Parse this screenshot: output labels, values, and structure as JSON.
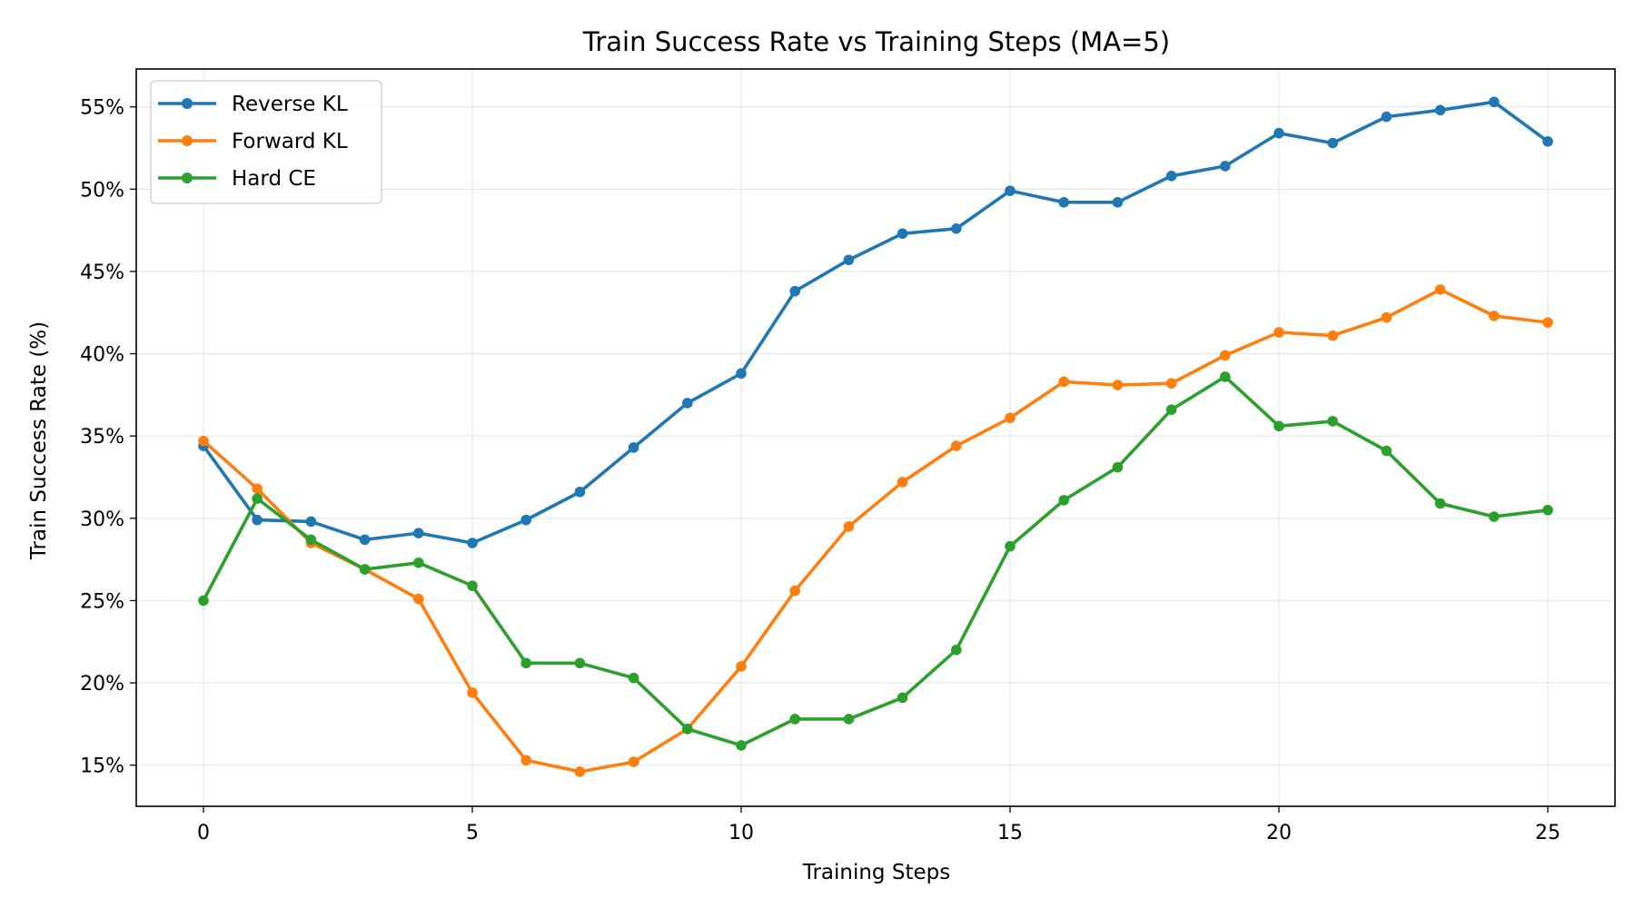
{
  "chart_data": {
    "type": "line",
    "title": "Train Success Rate vs Training Steps (MA=5)",
    "xlabel": "Training Steps",
    "ylabel": "Train Success Rate (%)",
    "xlim": [
      -1.25,
      26.25
    ],
    "ylim": [
      12.5,
      57.3
    ],
    "xticks": [
      0,
      5,
      10,
      15,
      20,
      25
    ],
    "xtick_labels": [
      "0",
      "5",
      "10",
      "15",
      "20",
      "25"
    ],
    "yticks": [
      15,
      20,
      25,
      30,
      35,
      40,
      45,
      50,
      55
    ],
    "ytick_labels": [
      "15%",
      "20%",
      "25%",
      "30%",
      "35%",
      "40%",
      "45%",
      "50%",
      "55%"
    ],
    "grid": true,
    "legend_position": "top-left",
    "x": [
      0,
      1,
      2,
      3,
      4,
      5,
      6,
      7,
      8,
      9,
      10,
      11,
      12,
      13,
      14,
      15,
      16,
      17,
      18,
      19,
      20,
      21,
      22,
      23,
      24,
      25
    ],
    "series": [
      {
        "name": "Reverse KL",
        "color": "#1f77b4",
        "values": [
          34.4,
          29.9,
          29.8,
          28.7,
          29.1,
          28.5,
          29.9,
          31.6,
          34.3,
          37.0,
          38.8,
          43.8,
          45.7,
          47.3,
          47.6,
          49.9,
          49.2,
          49.2,
          50.8,
          51.4,
          53.4,
          52.8,
          54.4,
          54.8,
          55.3,
          52.9
        ]
      },
      {
        "name": "Forward KL",
        "color": "#ff7f0e",
        "values": [
          34.7,
          31.8,
          28.5,
          26.9,
          25.1,
          19.4,
          15.3,
          14.6,
          15.2,
          17.2,
          21.0,
          25.6,
          29.5,
          32.2,
          34.4,
          36.1,
          38.3,
          38.1,
          38.2,
          39.9,
          41.3,
          41.1,
          42.2,
          43.9,
          42.3,
          41.9
        ]
      },
      {
        "name": "Hard CE",
        "color": "#2ca02c",
        "values": [
          25.0,
          31.2,
          28.7,
          26.9,
          27.3,
          25.9,
          21.2,
          21.2,
          20.3,
          17.2,
          16.2,
          17.8,
          17.8,
          19.1,
          22.0,
          28.3,
          31.1,
          33.1,
          36.6,
          38.6,
          35.6,
          35.9,
          34.1,
          30.9,
          30.1,
          30.5
        ]
      }
    ]
  }
}
